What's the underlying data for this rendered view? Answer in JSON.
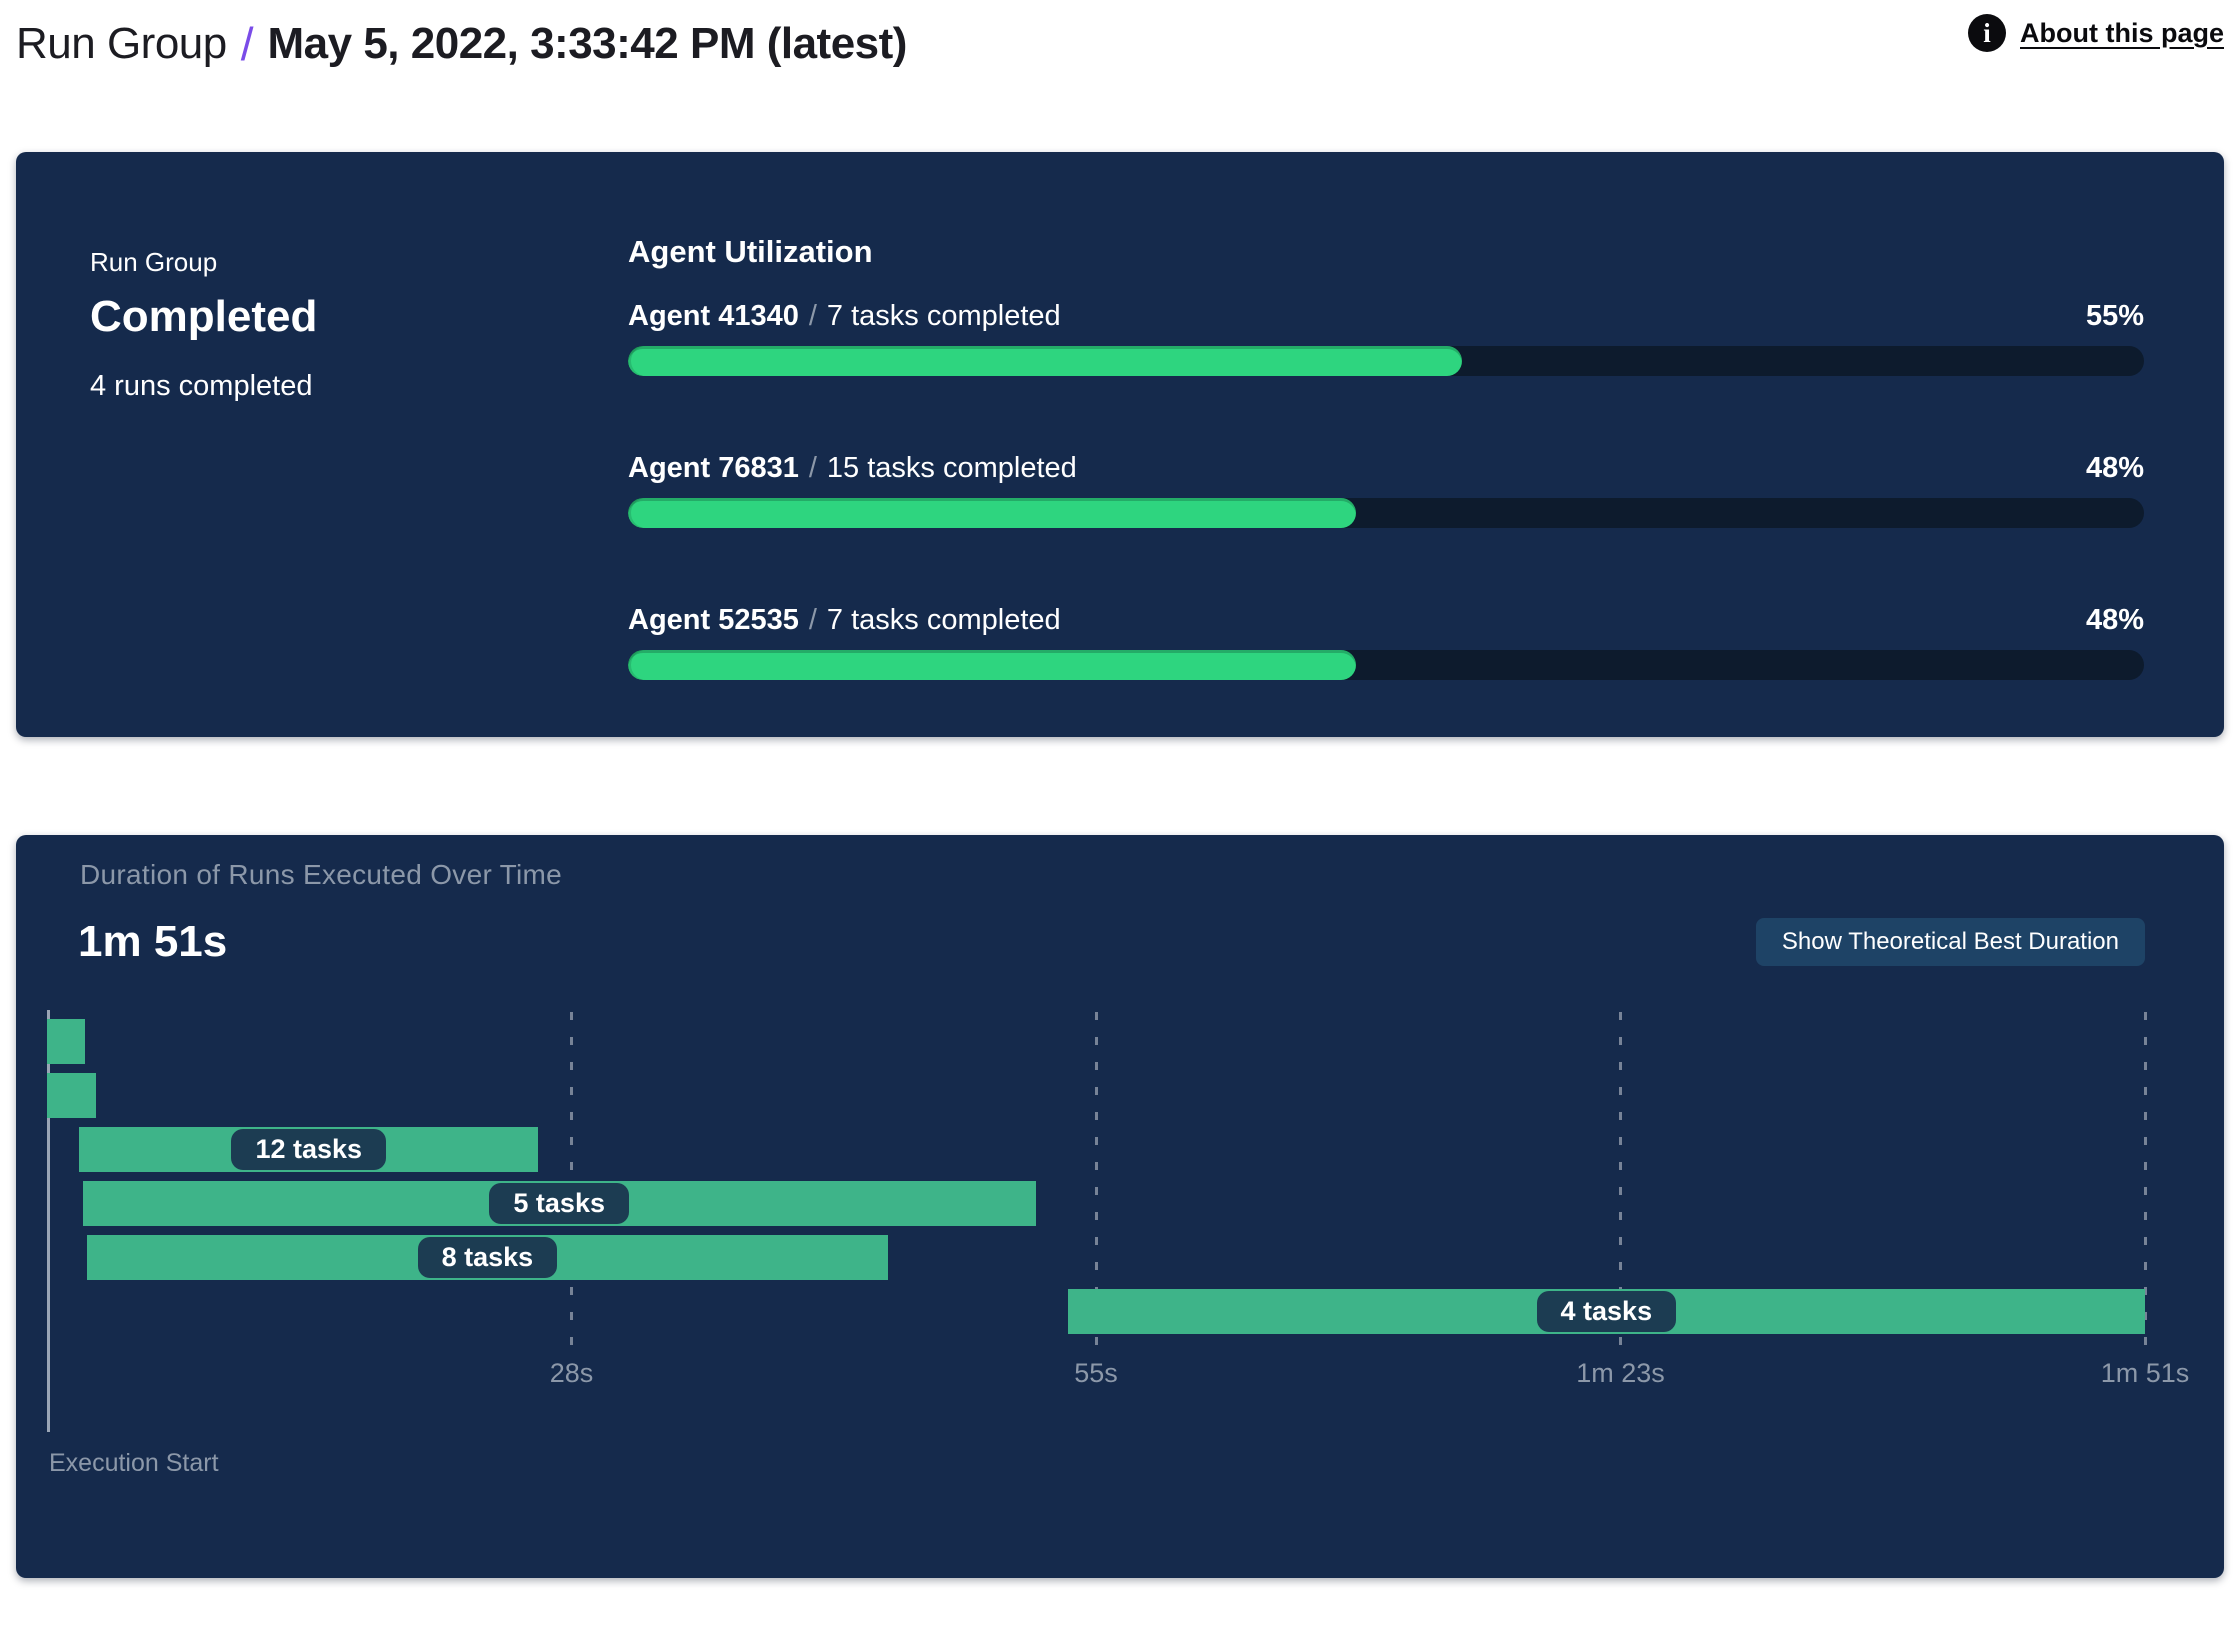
{
  "header": {
    "breadcrumb_root": "Run Group",
    "separator": "/",
    "title": "May 5, 2022, 3:33:42 PM (latest)",
    "about": {
      "label": "About this page",
      "icon_glyph": "i"
    }
  },
  "status_panel": {
    "eyebrow": "Run Group",
    "status": "Completed",
    "runs_summary": "4 runs completed"
  },
  "agent_utilization": {
    "title": "Agent Utilization",
    "separator": "/",
    "agents": [
      {
        "name": "Agent 41340",
        "tasks": "7 tasks completed",
        "percent_label": "55%",
        "percent": 55
      },
      {
        "name": "Agent 76831",
        "tasks": "15 tasks completed",
        "percent_label": "48%",
        "percent": 48
      },
      {
        "name": "Agent 52535",
        "tasks": "7 tasks completed",
        "percent_label": "48%",
        "percent": 48
      }
    ]
  },
  "duration_panel": {
    "title": "Duration of Runs Executed Over Time",
    "total_duration": "1m 51s",
    "button_label": "Show Theoretical Best Duration",
    "execution_start_label": "Execution Start"
  },
  "chart_data": {
    "type": "gantt",
    "title": "Duration of Runs Executed Over Time",
    "total_duration_label": "1m 51s",
    "x_axis": {
      "range_s": [
        0,
        111
      ],
      "ticks_s": [
        27.75,
        55.5,
        83.25,
        111
      ],
      "tick_labels": [
        "28s",
        "55s",
        "1m 23s",
        "1m 51s"
      ],
      "start_label": "Execution Start",
      "gridlines": "dashed-vertical"
    },
    "runs": [
      {
        "start_s": 0,
        "end_s": 2.0,
        "label": ""
      },
      {
        "start_s": 0,
        "end_s": 2.6,
        "label": ""
      },
      {
        "start_s": 1.7,
        "end_s": 26.0,
        "label": "12 tasks"
      },
      {
        "start_s": 1.9,
        "end_s": 52.3,
        "label": "5 tasks"
      },
      {
        "start_s": 2.1,
        "end_s": 44.5,
        "label": "8 tasks"
      },
      {
        "start_s": 54.0,
        "end_s": 111.0,
        "label": "4 tasks"
      }
    ]
  },
  "colors": {
    "panel_navy": "#152a4c",
    "progress_track": "#0d1b2d",
    "progress_green": "#2ed57f",
    "gantt_green": "#3eb489",
    "label_pill_navy": "#1c3c52",
    "button_navy": "#1e4366",
    "muted_text": "#8c98a9",
    "accent_purple": "#7a4ce8",
    "header_ink": "#1c1c22",
    "page_background": "#ffffff"
  }
}
